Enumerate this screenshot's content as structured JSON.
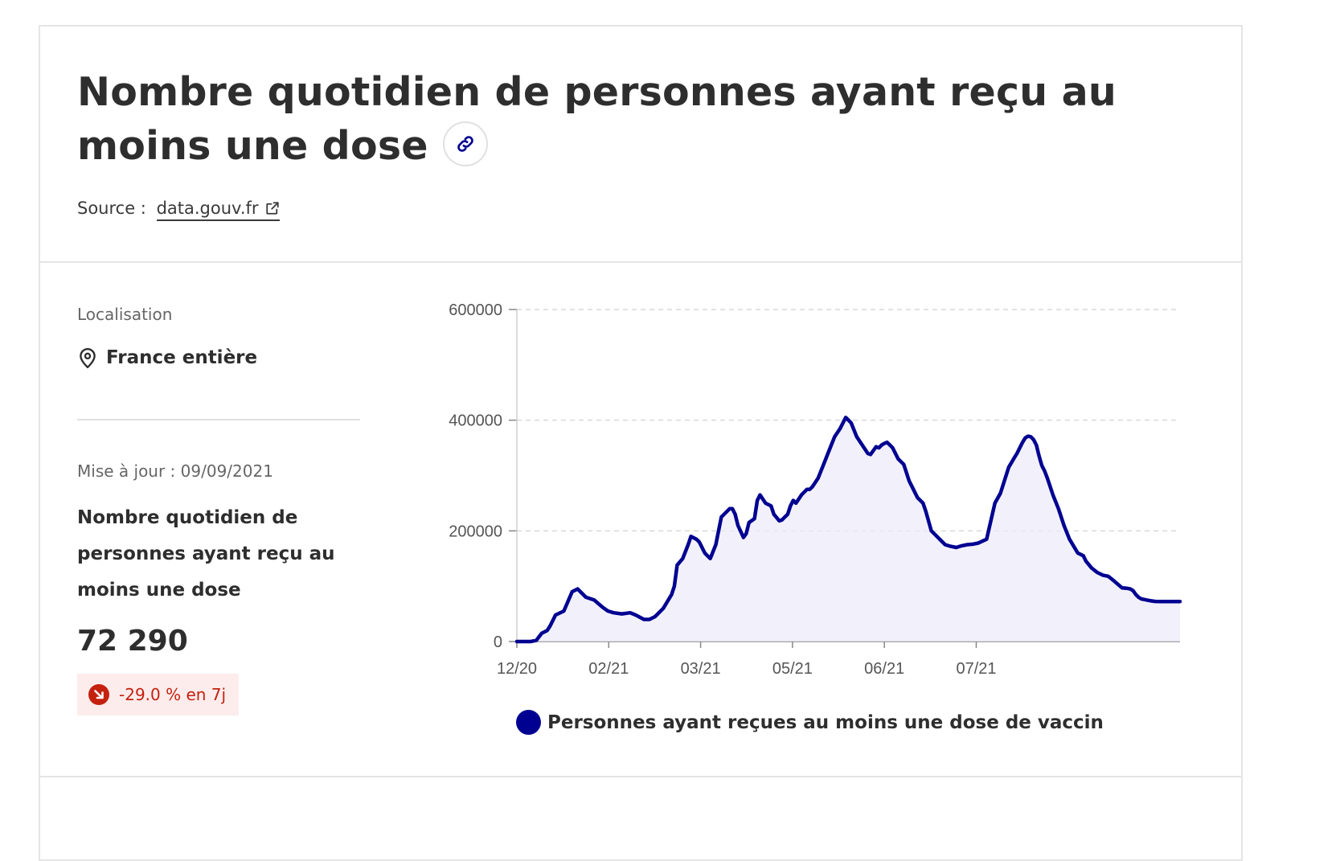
{
  "header": {
    "title": "Nombre quotidien de personnes ayant reçu au moins une dose",
    "source_label": "Source :",
    "source_link": "data.gouv.fr",
    "link_icon": "link-icon",
    "external_icon": "external-link-icon"
  },
  "sidebar": {
    "location_label": "Localisation",
    "location_value": "France entière",
    "location_icon": "map-pin-icon",
    "updated": "Mise à jour : 09/09/2021",
    "kpi_label": "Nombre quotidien de personnes ayant reçu au moins une dose",
    "kpi_value": "72 290",
    "trend": "-29.0 % en 7j",
    "trend_icon": "arrow-down-right-icon"
  },
  "colors": {
    "line": "#000091",
    "area": "#ecebfa",
    "trend_text": "#c4210f",
    "trend_bg": "#fdecec"
  },
  "chart_data": {
    "type": "area",
    "ylim": [
      0,
      600000
    ],
    "yticks": [
      "0",
      "200000",
      "400000",
      "600000"
    ],
    "xticks": [
      "12/20",
      "02/21",
      "03/21",
      "05/21",
      "06/21",
      "07/21"
    ],
    "grid": "horizontal dashed",
    "legend_position": "bottom",
    "series": [
      {
        "name": "Personnes ayant reçues au moins une dose de vaccin",
        "x": [
          0,
          5,
          7,
          9,
          11,
          12,
          14,
          17,
          20,
          22,
          25,
          28,
          31,
          33,
          35,
          38,
          41,
          43,
          46,
          48,
          50,
          53,
          56,
          57,
          58,
          60,
          62,
          63,
          65,
          66,
          68,
          70,
          72,
          74,
          75,
          77,
          78,
          79,
          80,
          82,
          83,
          84,
          86,
          87,
          88,
          90,
          92,
          93,
          95,
          96,
          97,
          98,
          99,
          100,
          101,
          103,
          105,
          106,
          107,
          109,
          111,
          113,
          115,
          117,
          119,
          121,
          123,
          125,
          127,
          128,
          130,
          131,
          132,
          133,
          134,
          135,
          136,
          138,
          140,
          142,
          143,
          145,
          147,
          148,
          150,
          152,
          154,
          155,
          157,
          159,
          161,
          163,
          165,
          167,
          170,
          173,
          175,
          178,
          180,
          181,
          182,
          183,
          184,
          185,
          186,
          187,
          188,
          189,
          190,
          191,
          192,
          194,
          196,
          198,
          200,
          203,
          205,
          206,
          208,
          210,
          212,
          214,
          216,
          219,
          221,
          222,
          223,
          224,
          225,
          226,
          227,
          228,
          229,
          231,
          233,
          236,
          238,
          240
        ],
        "values": [
          0,
          0,
          2000,
          15000,
          20000,
          28000,
          48000,
          55000,
          90000,
          95000,
          80000,
          75000,
          62000,
          55000,
          52000,
          50000,
          52000,
          48000,
          40000,
          40000,
          45000,
          60000,
          85000,
          100000,
          138000,
          150000,
          175000,
          190000,
          185000,
          180000,
          160000,
          150000,
          175000,
          225000,
          230000,
          240000,
          240000,
          230000,
          210000,
          188000,
          195000,
          215000,
          222000,
          255000,
          265000,
          250000,
          245000,
          230000,
          218000,
          220000,
          225000,
          230000,
          245000,
          255000,
          250000,
          265000,
          275000,
          275000,
          280000,
          295000,
          320000,
          345000,
          370000,
          385000,
          405000,
          395000,
          370000,
          355000,
          340000,
          338000,
          352000,
          350000,
          355000,
          358000,
          360000,
          355000,
          350000,
          330000,
          320000,
          290000,
          280000,
          260000,
          250000,
          235000,
          200000,
          190000,
          180000,
          175000,
          172000,
          170000,
          173000,
          175000,
          176000,
          178000,
          185000,
          250000,
          268000,
          315000,
          332000,
          340000,
          350000,
          360000,
          368000,
          371000,
          370000,
          365000,
          355000,
          335000,
          318000,
          308000,
          295000,
          265000,
          240000,
          210000,
          185000,
          160000,
          155000,
          145000,
          133000,
          125000,
          120000,
          118000,
          110000,
          97000,
          96000,
          95000,
          92000,
          85000,
          80000,
          77000,
          76000,
          75000,
          74000,
          72500,
          72290,
          72290,
          72290,
          72290
        ]
      }
    ]
  }
}
